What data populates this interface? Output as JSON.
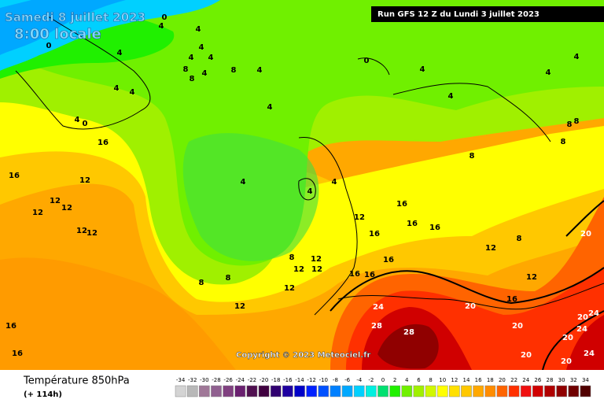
{
  "header": {
    "date": "Samedi 8 juillet 2023",
    "time": "8:00 locale",
    "run": "Run GFS 12 Z du Lundi 3 juillet 2023"
  },
  "copyright": "Copyright © 2023 Meteociel.fr",
  "footer": {
    "title": "Température 850hPa",
    "lead": "(+ 114h)"
  },
  "legend": {
    "ticks": [
      -34,
      -32,
      -30,
      -28,
      -26,
      -24,
      -22,
      -20,
      -18,
      -16,
      -14,
      -12,
      -10,
      -8,
      -6,
      -4,
      -2,
      0,
      2,
      4,
      6,
      8,
      10,
      12,
      14,
      16,
      18,
      20,
      22,
      24,
      26,
      28,
      30,
      32,
      34
    ],
    "colors": [
      "#d4d4d4",
      "#b8b8b8",
      "#a07898",
      "#906090",
      "#804080",
      "#6a2070",
      "#501050",
      "#400040",
      "#300070",
      "#1e00a0",
      "#0000c8",
      "#0020ff",
      "#0050ff",
      "#0080ff",
      "#00a8ff",
      "#00d0ff",
      "#00f0e0",
      "#00e070",
      "#20f000",
      "#70f000",
      "#a0f000",
      "#d0f800",
      "#ffff00",
      "#ffe000",
      "#ffc800",
      "#ffa800",
      "#ff8c00",
      "#ff6400",
      "#ff3000",
      "#f01010",
      "#d00000",
      "#b00000",
      "#900000",
      "#700000",
      "#500000"
    ]
  },
  "contour_labels": [
    0,
    4,
    4,
    0,
    4,
    4,
    4,
    4,
    8,
    8,
    4,
    8,
    4,
    0,
    4,
    4,
    4,
    4,
    4,
    4,
    4,
    4,
    0,
    16,
    8,
    8,
    8,
    8,
    16,
    12,
    4,
    4,
    4,
    12,
    12,
    12,
    16,
    16,
    12,
    16,
    12,
    12,
    16,
    20,
    8,
    12,
    16,
    12,
    8,
    12,
    12,
    16,
    16,
    12,
    8,
    8,
    12,
    16,
    20,
    24,
    12,
    16,
    28,
    20,
    24,
    20,
    28,
    24,
    20,
    16,
    24,
    20,
    20
  ]
}
